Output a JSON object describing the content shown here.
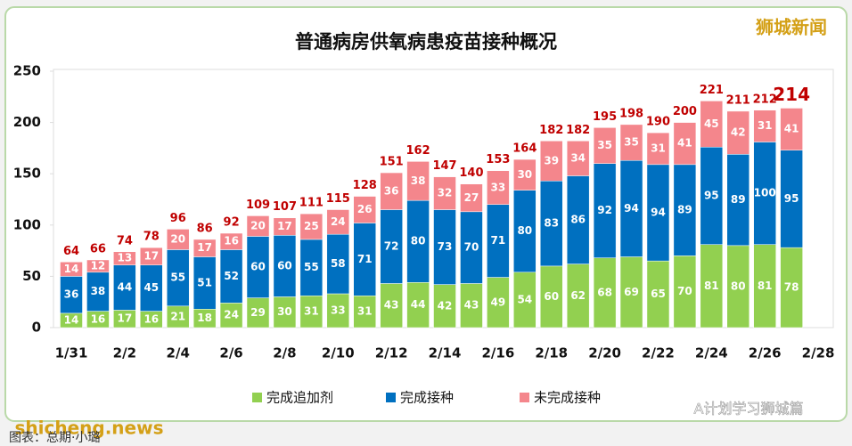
{
  "chart_data": {
    "type": "stacked_bar",
    "title": "普通病房供氧病患疫苗接种概况",
    "categories": [
      "1/31",
      null,
      "2/2",
      null,
      "2/4",
      null,
      "2/6",
      null,
      "2/8",
      null,
      "2/10",
      null,
      "2/12",
      null,
      "2/14",
      null,
      "2/16",
      null,
      "2/18",
      null,
      "2/20",
      null,
      "2/22",
      null,
      "2/24",
      null,
      "2/26",
      null,
      "2/28"
    ],
    "series": [
      {
        "name": "完成追加剂",
        "color": "#92d050",
        "values": [
          14,
          16,
          17,
          16,
          21,
          18,
          24,
          29,
          30,
          31,
          33,
          31,
          43,
          44,
          42,
          43,
          49,
          54,
          60,
          62,
          68,
          69,
          65,
          70,
          81,
          80,
          81,
          78,
          null
        ]
      },
      {
        "name": "完成接种",
        "color": "#0070c0",
        "values": [
          36,
          38,
          44,
          45,
          55,
          51,
          52,
          60,
          60,
          55,
          58,
          71,
          72,
          80,
          73,
          70,
          71,
          80,
          83,
          86,
          92,
          94,
          94,
          89,
          95,
          89,
          100,
          95,
          null
        ]
      },
      {
        "name": "未完成接种",
        "color": "#f4868c",
        "values": [
          14,
          12,
          13,
          17,
          20,
          17,
          16,
          20,
          17,
          25,
          24,
          26,
          36,
          38,
          32,
          27,
          33,
          30,
          39,
          34,
          35,
          35,
          31,
          41,
          45,
          42,
          31,
          41,
          null
        ]
      }
    ],
    "totals": [
      64,
      66,
      74,
      78,
      96,
      86,
      92,
      109,
      107,
      111,
      115,
      128,
      151,
      162,
      147,
      140,
      153,
      164,
      182,
      182,
      195,
      198,
      190,
      200,
      221,
      211,
      212,
      214,
      null
    ],
    "ylim": [
      0,
      250
    ],
    "yticks": [
      0,
      50,
      100,
      150,
      200,
      250
    ],
    "grid": false,
    "watermarks": [
      "狮城新闻",
      "shicheng.news",
      "A计划学习狮城篇"
    ],
    "source": "图表：总期·小璐"
  }
}
